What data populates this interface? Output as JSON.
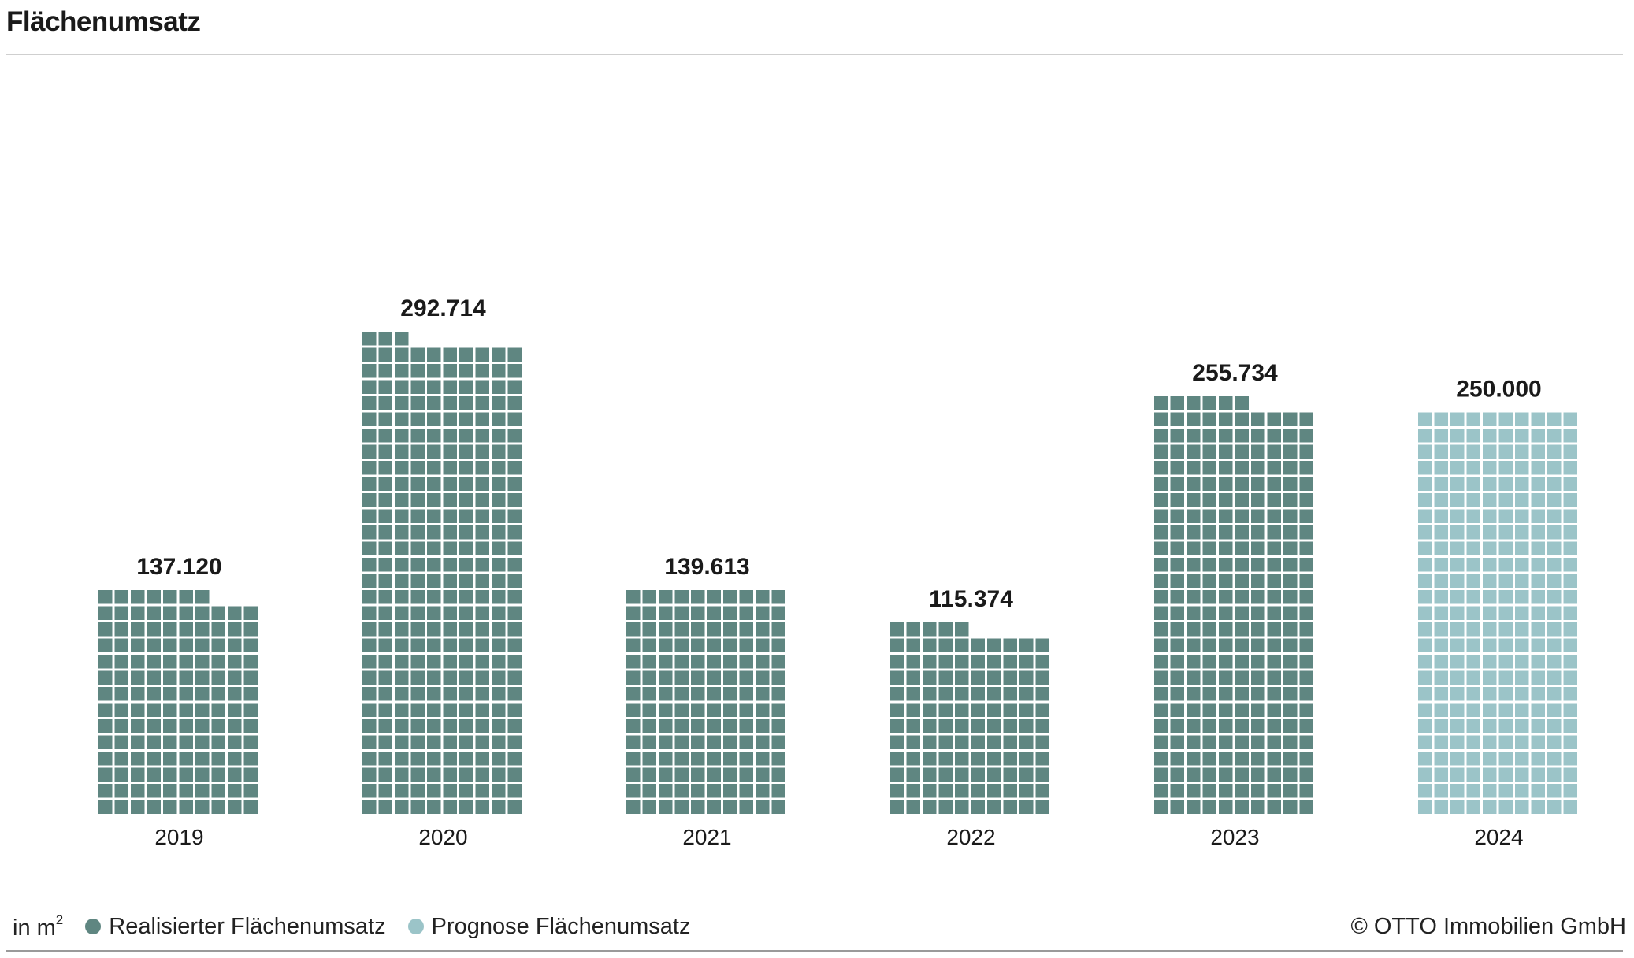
{
  "title": "Flächenumsatz",
  "colors": {
    "realized": "#5f8681",
    "forecast": "#9bc4c8",
    "text": "#1a1a1a"
  },
  "legend": {
    "unit_prefix": "in m",
    "unit_superscript": "2",
    "realized_label": "Realisierter Flächenumsatz",
    "forecast_label": "Prognose Flächenumsatz"
  },
  "copyright": "© OTTO Immobilien GmbH",
  "chart_data": {
    "type": "bar",
    "style": "waffle",
    "title": "Flächenumsatz",
    "categories": [
      "2019",
      "2020",
      "2021",
      "2022",
      "2023",
      "2024"
    ],
    "series": [
      {
        "name": "Realisierter Flächenumsatz",
        "values": [
          137120,
          292714,
          139613,
          115374,
          255734,
          null
        ]
      },
      {
        "name": "Prognose Flächenumsatz",
        "values": [
          null,
          null,
          null,
          null,
          null,
          250000
        ]
      }
    ],
    "value_labels": [
      "137.120",
      "292.714",
      "139.613",
      "115.374",
      "255.734",
      "250.000"
    ],
    "unit": "m²",
    "grid": false,
    "legend_position": "bottom-left"
  }
}
